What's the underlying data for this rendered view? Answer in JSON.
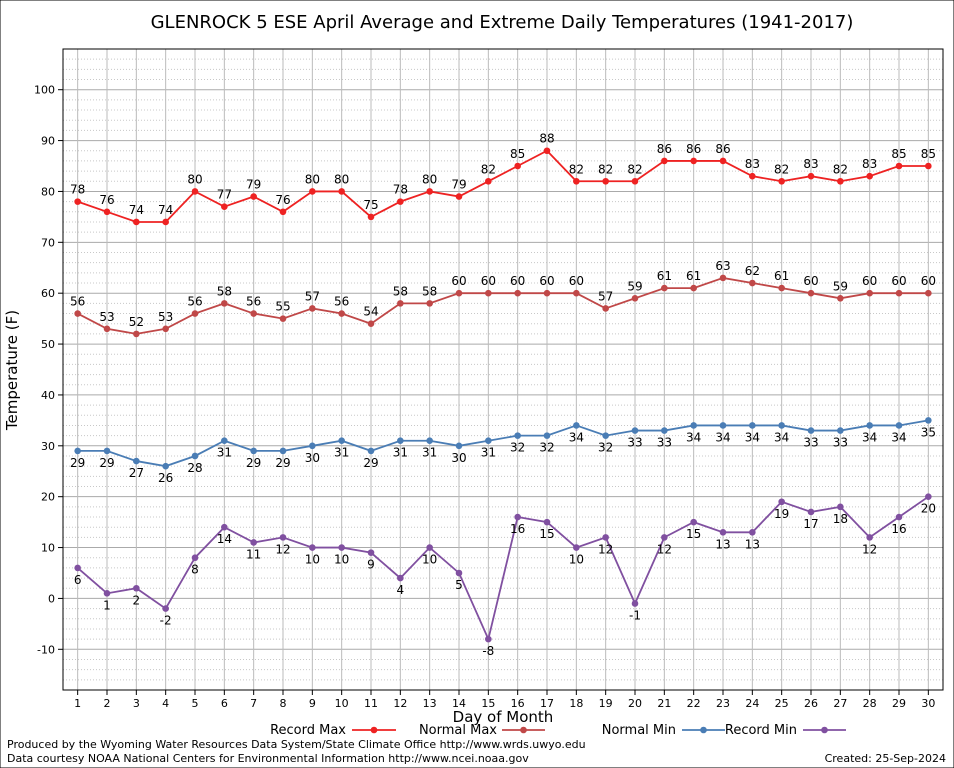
{
  "credits": {
    "produced_by": "Produced by the Wyoming Water Resources Data System/State Climate Office http://www.wrds.uwyo.edu",
    "data_courtesy": "Data courtesy NOAA National Centers for Environmental Information http://www.ncei.noaa.gov",
    "created": "Created:  25-Sep-2024"
  },
  "chart_data": {
    "type": "line",
    "title": "GLENROCK 5 ESE April Average and Extreme Daily Temperatures (1941-2017)",
    "xlabel": "Day of Month",
    "ylabel": "Temperature (F)",
    "xlim": [
      0.5,
      30.5
    ],
    "ylim": [
      -18,
      108
    ],
    "yticks": [
      -10,
      0,
      10,
      20,
      30,
      40,
      50,
      60,
      70,
      80,
      90,
      100
    ],
    "x": [
      1,
      2,
      3,
      4,
      5,
      6,
      7,
      8,
      9,
      10,
      11,
      12,
      13,
      14,
      15,
      16,
      17,
      18,
      19,
      20,
      21,
      22,
      23,
      24,
      25,
      26,
      27,
      28,
      29,
      30
    ],
    "grid": true,
    "legend_placement": "bottom",
    "series": [
      {
        "name": "Record Max",
        "color": "#ee2222",
        "label_pos": "above",
        "values": [
          78,
          76,
          74,
          74,
          80,
          77,
          79,
          76,
          80,
          80,
          75,
          78,
          80,
          79,
          82,
          85,
          88,
          82,
          82,
          82,
          86,
          86,
          86,
          83,
          82,
          83,
          82,
          83,
          85,
          85
        ]
      },
      {
        "name": "Normal Max",
        "color": "#c04848",
        "label_pos": "above",
        "values": [
          56,
          53,
          52,
          53,
          56,
          58,
          56,
          55,
          57,
          56,
          54,
          58,
          58,
          60,
          60,
          60,
          60,
          60,
          57,
          59,
          61,
          61,
          63,
          62,
          61,
          60,
          59,
          60,
          60,
          60
        ]
      },
      {
        "name": "Normal Min",
        "color": "#4a7db5",
        "label_pos": "below",
        "values": [
          29,
          29,
          27,
          26,
          28,
          31,
          29,
          29,
          30,
          31,
          29,
          31,
          31,
          30,
          31,
          32,
          32,
          34,
          32,
          33,
          33,
          34,
          34,
          34,
          34,
          33,
          33,
          34,
          34,
          35
        ]
      },
      {
        "name": "Record Min",
        "color": "#8050a0",
        "label_pos": "below",
        "values": [
          6,
          1,
          2,
          -2,
          8,
          14,
          11,
          12,
          10,
          10,
          9,
          4,
          10,
          5,
          -8,
          16,
          15,
          10,
          12,
          -1,
          12,
          15,
          13,
          13,
          19,
          17,
          18,
          12,
          16,
          20
        ]
      }
    ]
  }
}
